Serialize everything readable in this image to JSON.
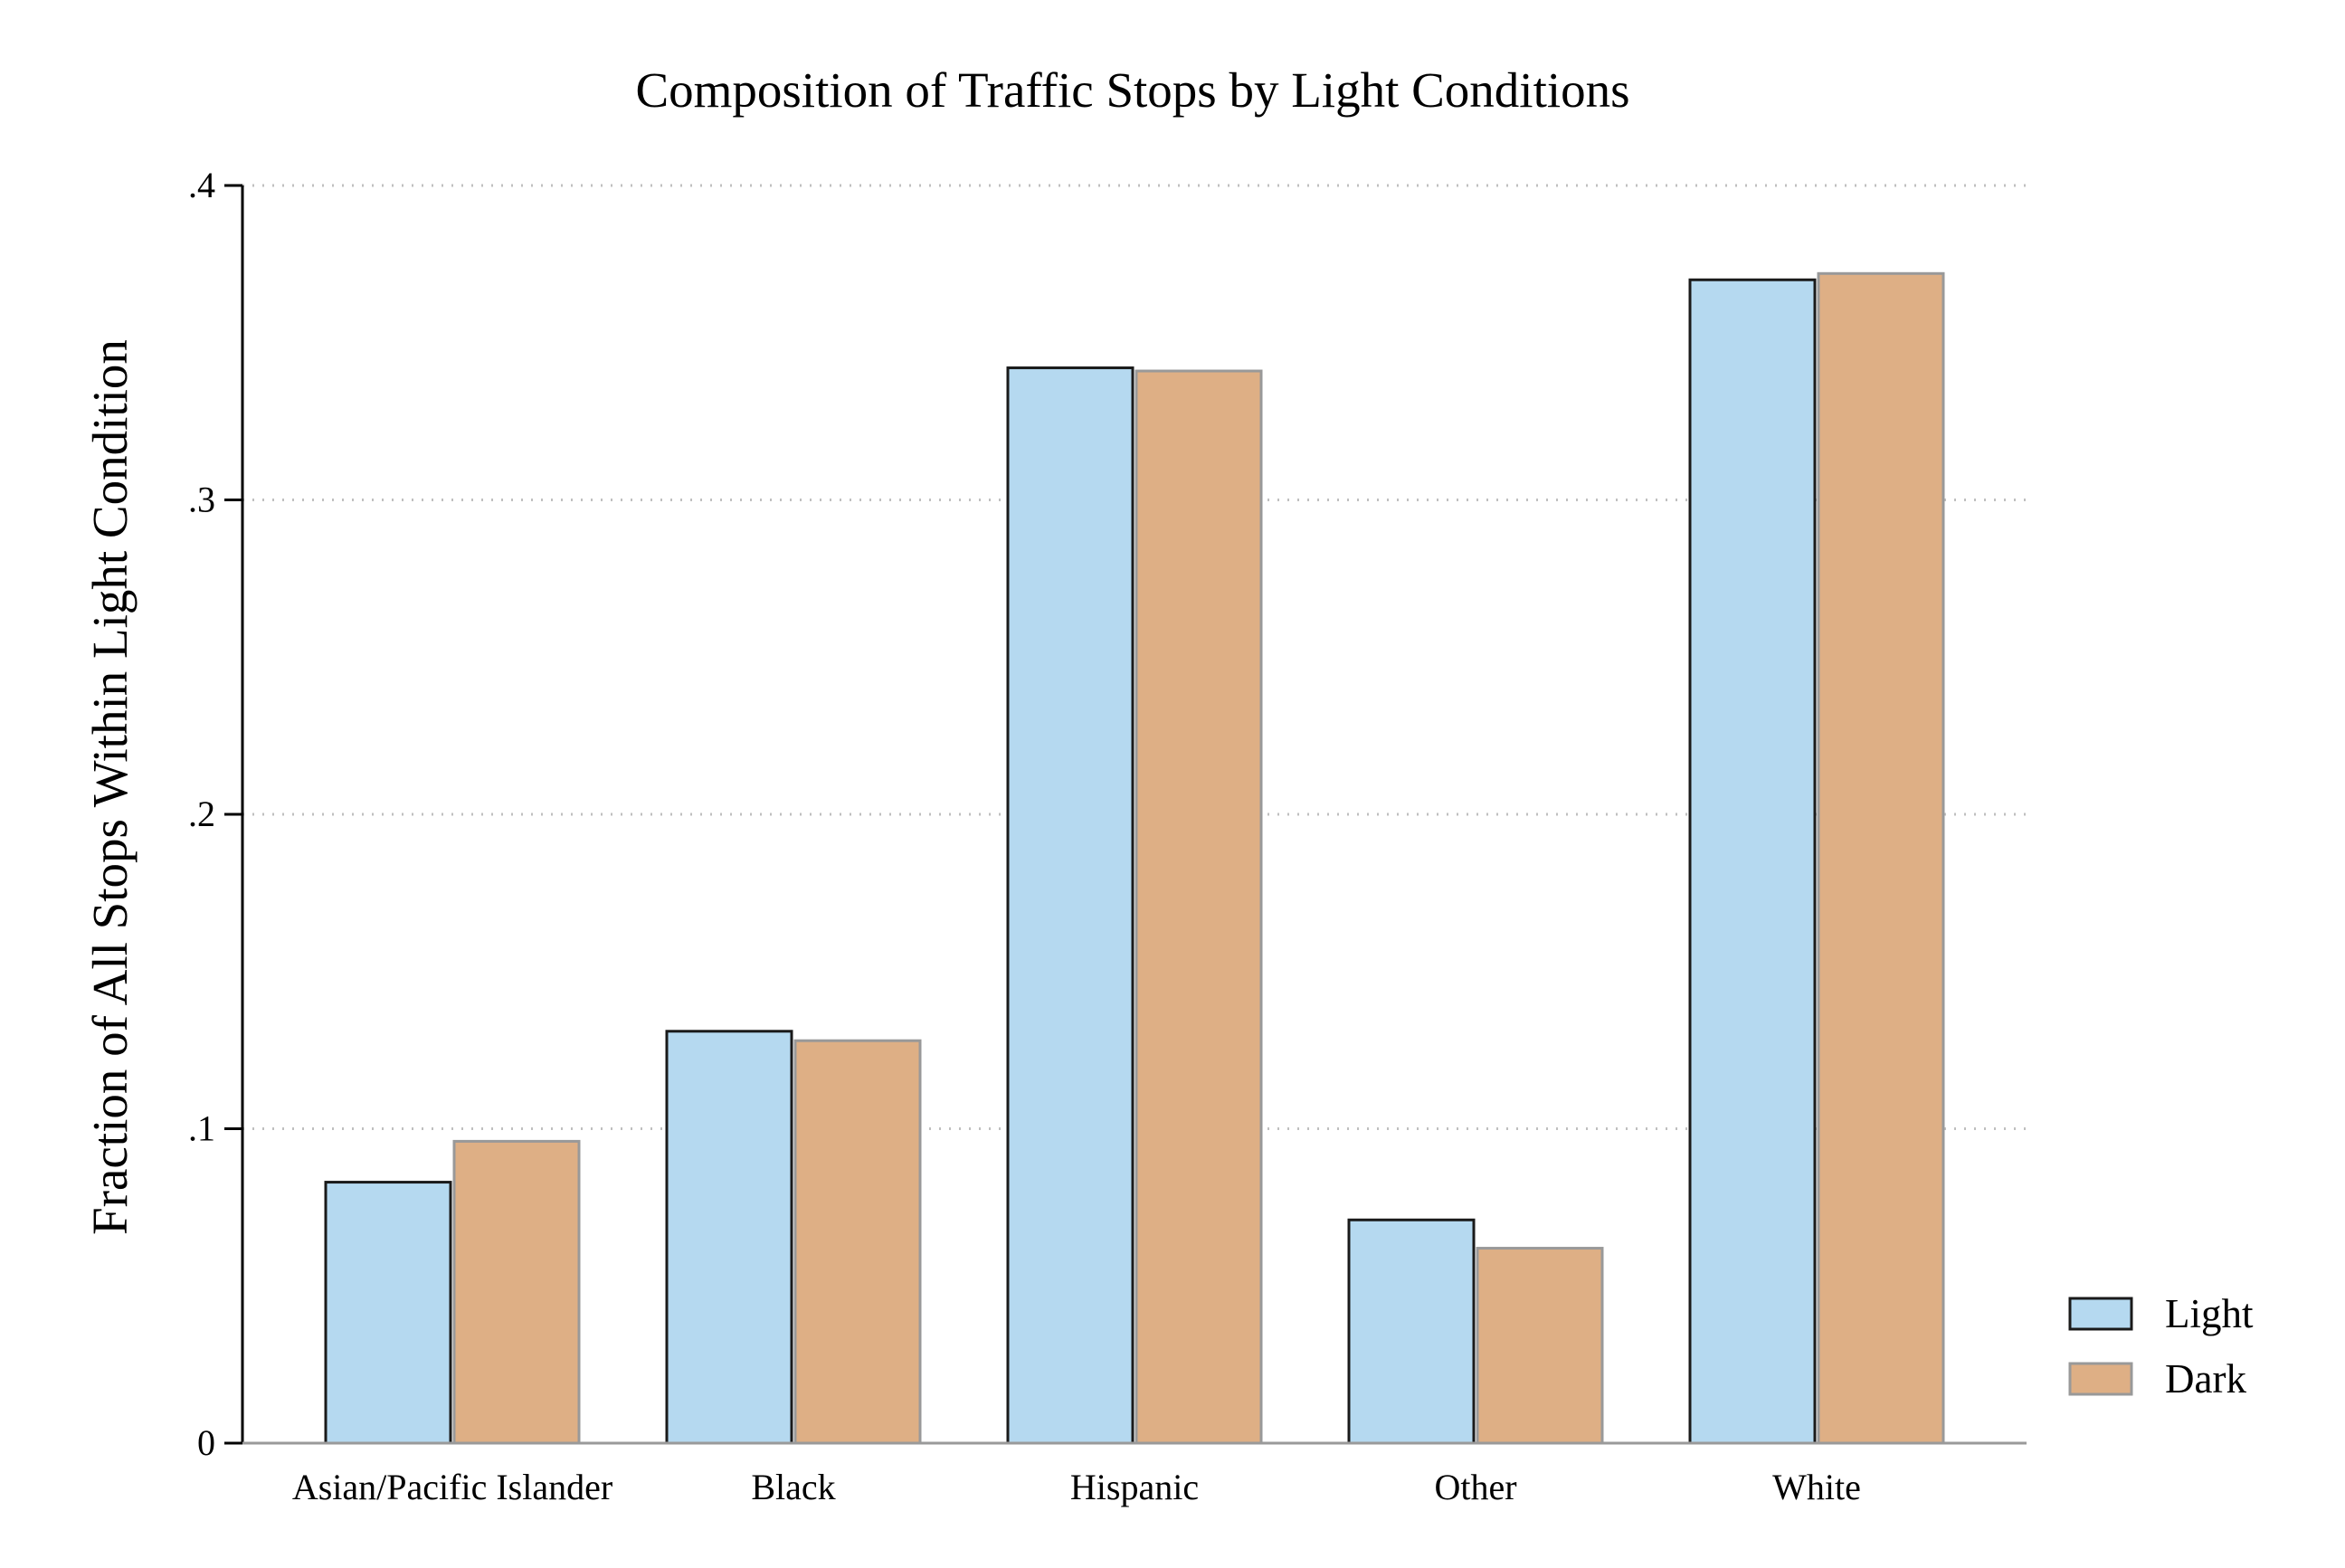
{
  "chart_data": {
    "type": "bar",
    "title": "Composition of Traffic Stops by Light Conditions",
    "xlabel": "",
    "ylabel": "Fraction of All Stops Within Light Condition",
    "ylim": [
      0,
      0.4
    ],
    "yticks": [
      {
        "value": 0,
        "label": "0"
      },
      {
        "value": 0.1,
        "label": ".1"
      },
      {
        "value": 0.2,
        "label": ".2"
      },
      {
        "value": 0.3,
        "label": ".3"
      },
      {
        "value": 0.4,
        "label": ".4"
      }
    ],
    "grid": "horizontal dotted",
    "legend_position": "right",
    "categories": [
      "Asian/Pacific Islander",
      "Black",
      "Hispanic",
      "Other",
      "White"
    ],
    "series": [
      {
        "name": "Light",
        "values": [
          0.083,
          0.131,
          0.342,
          0.071,
          0.37
        ],
        "color": "#b5d9f0",
        "stroke": "#1a1a1a"
      },
      {
        "name": "Dark",
        "values": [
          0.096,
          0.128,
          0.341,
          0.062,
          0.372
        ],
        "color": "#deaf85",
        "stroke": "#999999"
      }
    ]
  }
}
